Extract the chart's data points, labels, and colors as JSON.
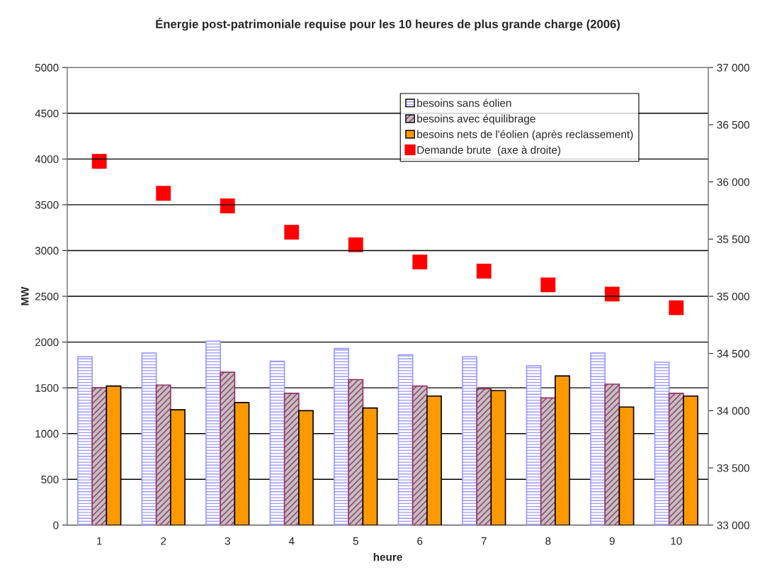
{
  "chart_data": {
    "type": "bar",
    "title": "Énergie post-patrimoniale requise pour les 10 heures de plus grande charge (2006)",
    "xlabel": "heure",
    "ylabel": "MW",
    "categories": [
      "1",
      "2",
      "3",
      "4",
      "5",
      "6",
      "7",
      "8",
      "9",
      "10"
    ],
    "series": [
      {
        "name": "besoins sans éolien",
        "color": "#9999ff",
        "values": [
          1840,
          1880,
          2010,
          1790,
          1930,
          1860,
          1840,
          1740,
          1880,
          1780
        ]
      },
      {
        "name": "besoins avec équilibrage",
        "color": "#993366",
        "values": [
          1500,
          1530,
          1670,
          1440,
          1590,
          1520,
          1490,
          1390,
          1540,
          1440
        ]
      },
      {
        "name": "besoins nets de l'éolien (après reclassement)",
        "color": "#ff9900",
        "values": [
          1520,
          1260,
          1340,
          1250,
          1280,
          1410,
          1470,
          1630,
          1290,
          1410
        ]
      },
      {
        "name": "Demande brute  (axe à droite)",
        "type": "scatter",
        "axis": "y2",
        "marker": "square",
        "color": "#ff0000",
        "values": [
          36180,
          35900,
          35790,
          35560,
          35450,
          35300,
          35220,
          35100,
          35020,
          34900
        ]
      }
    ],
    "ylim": [
      0,
      5000
    ],
    "yticks": [
      0,
      500,
      1000,
      1500,
      2000,
      2500,
      3000,
      3500,
      4000,
      4500,
      5000
    ],
    "y2lim": [
      33000,
      37000
    ],
    "y2ticks": [
      {
        "value": 33000,
        "label": "33 000"
      },
      {
        "value": 33500,
        "label": "33 500"
      },
      {
        "value": 34000,
        "label": "34 000"
      },
      {
        "value": 34500,
        "label": "34 500"
      },
      {
        "value": 35000,
        "label": "35 000"
      },
      {
        "value": 35500,
        "label": "35 500"
      },
      {
        "value": 36000,
        "label": "36 000"
      },
      {
        "value": 36500,
        "label": "36 500"
      },
      {
        "value": 37000,
        "label": "37 000"
      }
    ],
    "grid": "y",
    "legend": "top right"
  }
}
